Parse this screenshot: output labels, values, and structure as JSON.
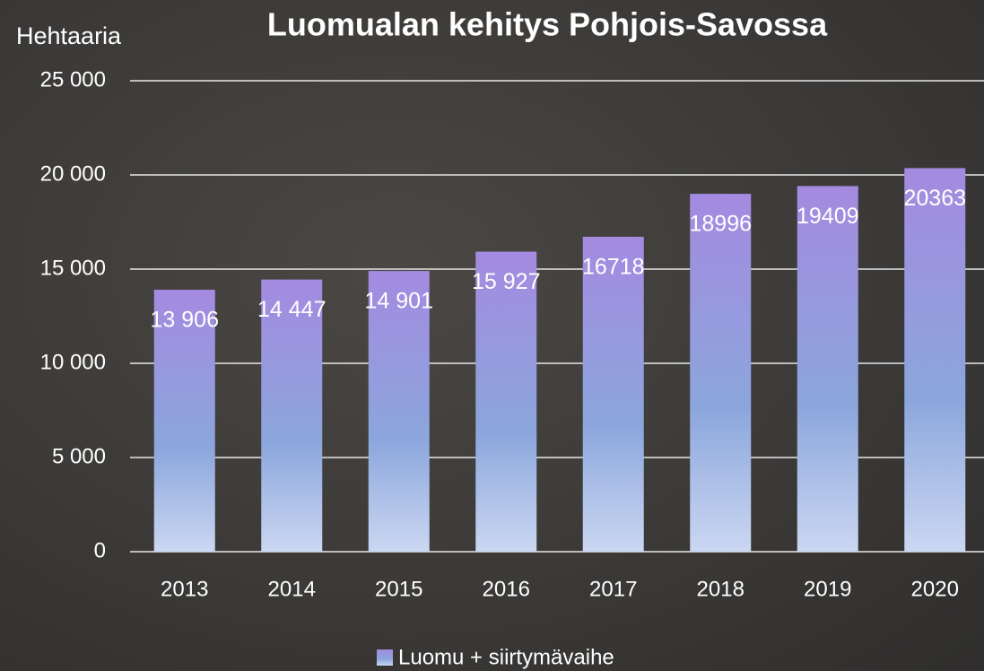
{
  "chart_data": {
    "type": "bar",
    "title": "Luomualan kehitys Pohjois-Savossa",
    "y_label": "Hehtaaria",
    "categories": [
      "2013",
      "2014",
      "2015",
      "2016",
      "2017",
      "2018",
      "2019",
      "2020"
    ],
    "series": [
      {
        "name": "Luomu + siirtymävaihe",
        "colors": [
          "#a48ae0",
          "#8ba6dc",
          "#cbd7f2"
        ],
        "values": [
          13906,
          14447,
          14901,
          15927,
          16718,
          18996,
          19409,
          20363
        ],
        "value_labels": [
          "13 906",
          "14 447",
          "14 901",
          "15 927",
          "16718",
          "18996",
          "19409",
          "20363"
        ]
      }
    ],
    "ylim": [
      0,
      25000
    ],
    "yticks": [
      0,
      {
        "value": 5000,
        "label": "5 000"
      },
      {
        "value": 10000,
        "label": "10 000"
      },
      {
        "value": 15000,
        "label": "15 000"
      },
      {
        "value": 20000,
        "label": "20 000"
      },
      {
        "value": 25000,
        "label": "25 000"
      }
    ],
    "grid": true,
    "legend": "bottom"
  }
}
